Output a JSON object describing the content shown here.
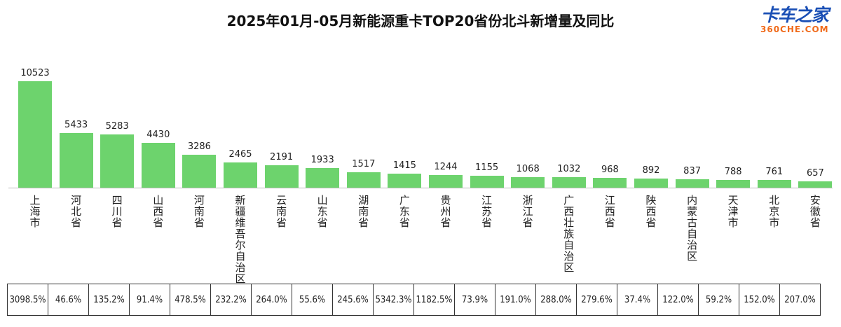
{
  "chart_data": {
    "type": "bar",
    "title": "2025年01月-05月新能源重卡TOP20省份北斗新增量及同比",
    "categories": [
      "上海市",
      "河北省",
      "四川省",
      "山西省",
      "河南省",
      "新疆维吾尔自治区",
      "云南省",
      "山东省",
      "湖南省",
      "广东省",
      "贵州省",
      "江苏省",
      "浙江省",
      "广西壮族自治区",
      "江西省",
      "陕西省",
      "内蒙古自治区",
      "天津市",
      "北京市",
      "安徽省"
    ],
    "values": [
      10523,
      5433,
      5283,
      4430,
      3286,
      2465,
      2191,
      1933,
      1517,
      1415,
      1244,
      1155,
      1068,
      1032,
      968,
      892,
      837,
      788,
      761,
      657
    ],
    "yoy": [
      "3098.5%",
      "46.6%",
      "135.2%",
      "91.4%",
      "478.5%",
      "232.2%",
      "264.0%",
      "55.6%",
      "245.6%",
      "5342.3%",
      "1182.5%",
      "73.9%",
      "191.0%",
      "288.0%",
      "279.6%",
      "37.4%",
      "122.0%",
      "59.2%",
      "152.0%",
      "207.0%"
    ],
    "bar_color": "#6dd36d",
    "ylim": [
      0,
      10523
    ],
    "grid": false
  },
  "logo": {
    "cn": "卡车之家",
    "en": "360CHE.COM"
  }
}
